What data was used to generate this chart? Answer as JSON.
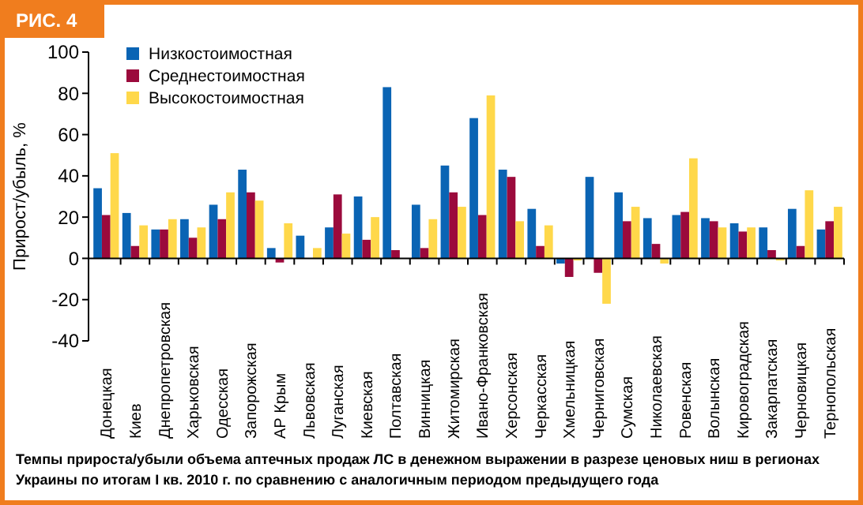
{
  "chart_data": {
    "type": "bar",
    "title": "РИС. 4",
    "ylabel": "Прирост/убыль, %",
    "categories": [
      "Донецкая",
      "Киев",
      "Днепропетровская",
      "Харьковская",
      "Одесская",
      "Запорожская",
      "АР Крым",
      "Львовская",
      "Луганская",
      "Киевская",
      "Полтавская",
      "Винницкая",
      "Житомирская",
      "Ивано-Франковская",
      "Херсонская",
      "Черкасская",
      "Хмельницкая",
      "Черниговская",
      "Сумская",
      "Николаевская",
      "Ровенская",
      "Волынская",
      "Кировоградская",
      "Закарпатская",
      "Черновицкая",
      "Тернопольская"
    ],
    "series": [
      {
        "name": "Низкостоимостная",
        "color": "#0a64b4",
        "values": [
          34,
          22,
          14,
          19,
          26,
          43,
          5,
          11,
          15,
          30,
          83,
          26,
          45,
          68,
          43,
          24,
          -2.5,
          39.5,
          32,
          19.5,
          21,
          19.5,
          17,
          15,
          24,
          14
        ]
      },
      {
        "name": "Среднестоимостная",
        "color": "#9b0a3c",
        "values": [
          21,
          6,
          14,
          10,
          19,
          32,
          -2,
          0,
          31,
          9,
          4,
          5,
          32,
          21,
          39.5,
          6,
          -9,
          -7,
          18,
          7,
          22.5,
          18,
          13,
          4,
          6,
          18
        ]
      },
      {
        "name": "Высокостоимостная",
        "color": "#ffd84a",
        "values": [
          51,
          16,
          19,
          15,
          32,
          28,
          17,
          5,
          12,
          20,
          0,
          19,
          25,
          79,
          18,
          16,
          -1,
          -22,
          25,
          -2.5,
          48.5,
          15,
          15,
          -1,
          33,
          25
        ]
      }
    ],
    "ylim": [
      -40,
      100
    ],
    "yticks": [
      -40,
      -20,
      0,
      20,
      40,
      60,
      80,
      100
    ],
    "grid": false,
    "legend": "top left",
    "annotations": [
      "Темпы прироста/убыли объема аптечных продаж ЛС в денежном выражении в разрезе ценовых ниш в регионах Украины по итогам I кв. 2010 г. по сравнению с аналогичным периодом предыдущего года"
    ]
  }
}
